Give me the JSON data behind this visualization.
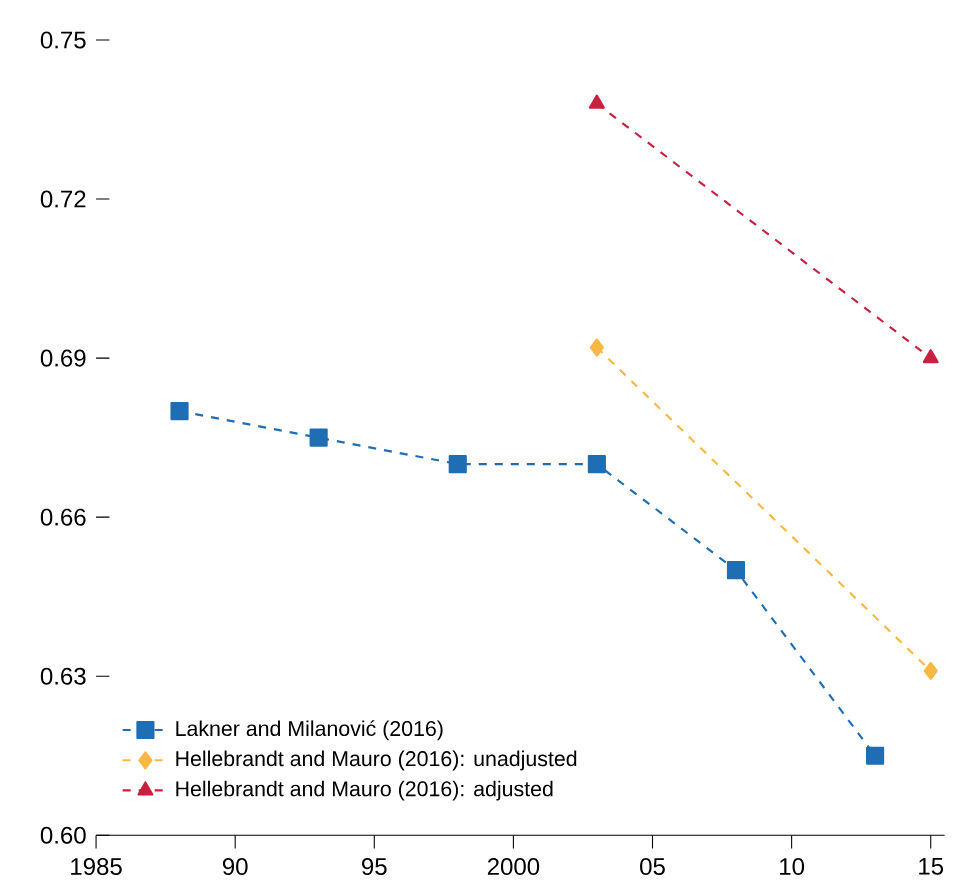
{
  "chart_data": {
    "type": "line",
    "line_style": "dashed",
    "legend": "bottom left",
    "grid": false,
    "xlim": [
      1985,
      2015.5
    ],
    "ylim": [
      0.6,
      0.75
    ],
    "xticks": [
      1985,
      {
        "value": 1990,
        "label": "90"
      },
      {
        "value": 1995,
        "label": "95"
      },
      2000,
      {
        "value": 2005,
        "label": "05"
      },
      {
        "value": 2010,
        "label": "10"
      },
      {
        "value": 2015,
        "label": "15"
      }
    ],
    "yticks": [
      {
        "value": 0.6,
        "label": "0.60"
      },
      {
        "value": 0.63,
        "label": "0.63"
      },
      {
        "value": 0.66,
        "label": "0.66"
      },
      {
        "value": 0.69,
        "label": "0.69"
      },
      {
        "value": 0.72,
        "label": "0.72"
      },
      {
        "value": 0.75,
        "label": "0.75"
      }
    ],
    "series": [
      {
        "name": "Lakner and Milanović (2016)",
        "color": "#1f6db3",
        "marker": "square",
        "x": [
          1988,
          1993,
          1998,
          2003,
          2008,
          2013
        ],
        "values": [
          0.68,
          0.675,
          0.67,
          0.67,
          0.65,
          0.615
        ]
      },
      {
        "name": "Hellebrandt and Mauro (2016): unadjusted",
        "color": "#f7b844",
        "marker": "diamond",
        "x": [
          2003,
          2015
        ],
        "values": [
          0.692,
          0.631
        ]
      },
      {
        "name": "Hellebrandt and Mauro (2016): adjusted",
        "color": "#c8203f",
        "marker": "triangle",
        "x": [
          2003,
          2015
        ],
        "values": [
          0.738,
          0.69
        ]
      }
    ]
  }
}
